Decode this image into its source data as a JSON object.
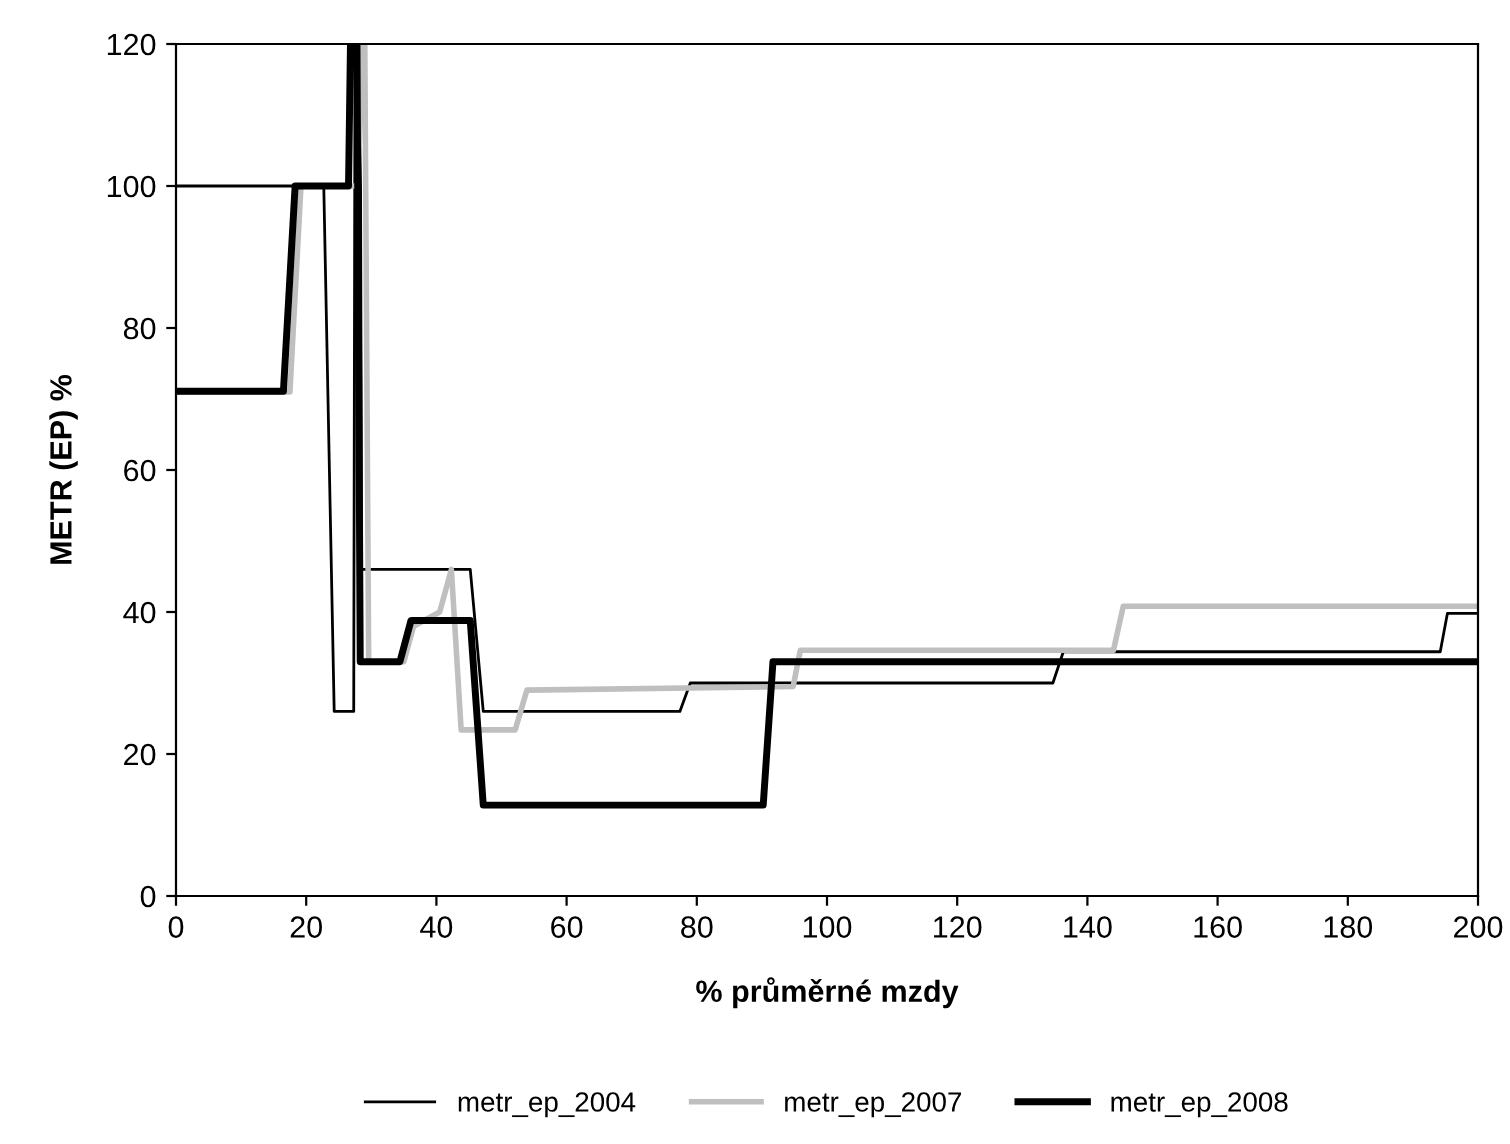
{
  "chart_data": {
    "type": "line",
    "xlabel": "% průměrné mzdy",
    "ylabel": "METR (EP) %",
    "xlim": [
      0,
      200
    ],
    "ylim": [
      0,
      120
    ],
    "xticks": [
      0,
      20,
      40,
      60,
      80,
      100,
      120,
      140,
      160,
      180,
      200
    ],
    "yticks": [
      0,
      20,
      40,
      60,
      80,
      100,
      120
    ],
    "grid": false,
    "legend": "bottom",
    "marker": "none",
    "line_style": "solid",
    "series": [
      {
        "name": "metr_ep_2004",
        "color": "#000000",
        "x": [
          0,
          22.7,
          24.3,
          27.3,
          27.5,
          28.3,
          28.5,
          45.2,
          47.2,
          77.4,
          79,
          134.7,
          136.3,
          194.2,
          195.3,
          200
        ],
        "values": [
          100,
          100,
          26,
          26,
          120,
          120,
          46,
          46,
          26,
          26,
          30,
          30,
          34.4,
          34.4,
          39.8,
          39.8
        ]
      },
      {
        "name": "metr_ep_2007",
        "color": "#bfbfbf",
        "x": [
          0,
          17.5,
          19.2,
          28.0,
          28.5,
          29.0,
          29.6,
          35.0,
          36.5,
          40.5,
          42.3,
          43.8,
          52.1,
          53.9,
          94.8,
          95.9,
          144,
          145.5,
          200
        ],
        "values": [
          71,
          71,
          100,
          100,
          120,
          120,
          33,
          33,
          38,
          40,
          46,
          23.4,
          23.4,
          29,
          29.5,
          34.6,
          34.6,
          40.8,
          40.8
        ]
      },
      {
        "name": "metr_ep_2008",
        "color": "#000000",
        "x": [
          0,
          16.5,
          18.3,
          26.5,
          26.8,
          27.8,
          28.3,
          34.4,
          36.1,
          45.2,
          47.2,
          90.2,
          91.7,
          200
        ],
        "values": [
          71.1,
          71.1,
          100,
          100,
          120,
          120,
          33,
          33,
          38.8,
          38.8,
          12.8,
          12.8,
          33,
          33
        ]
      }
    ]
  }
}
